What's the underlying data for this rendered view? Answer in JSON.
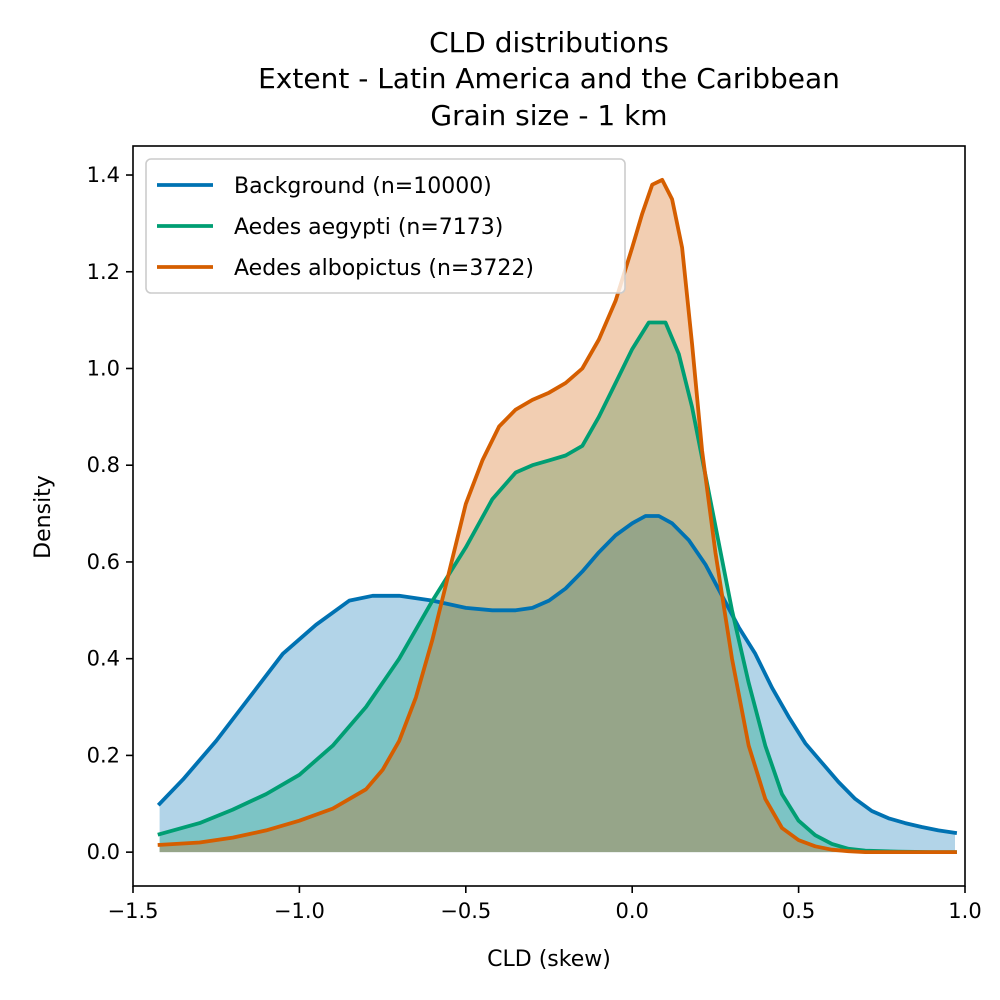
{
  "chart_data": {
    "type": "area",
    "title": [
      "CLD distributions",
      "Extent - Latin America and the Caribbean",
      "Grain size - 1 km"
    ],
    "xlabel": "CLD (skew)",
    "ylabel": "Density",
    "xlim": [
      -1.5,
      1.0
    ],
    "ylim": [
      -0.07,
      1.46
    ],
    "xticks": [
      -1.5,
      -1.0,
      -0.5,
      0.0,
      0.5,
      1.0
    ],
    "xtick_labels": [
      "−1.5",
      "−1.0",
      "−0.5",
      "0.0",
      "0.5",
      "1.0"
    ],
    "yticks": [
      0.0,
      0.2,
      0.4,
      0.6,
      0.8,
      1.0,
      1.2,
      1.4
    ],
    "ytick_labels": [
      "0.0",
      "0.2",
      "0.4",
      "0.6",
      "0.8",
      "1.0",
      "1.2",
      "1.4"
    ],
    "grid": false,
    "legend_position": "top-left",
    "series": [
      {
        "name": "Background (n=10000)",
        "color": "#0072B2",
        "fill": "#B3D4E6",
        "x": [
          -1.42,
          -1.35,
          -1.25,
          -1.15,
          -1.05,
          -0.95,
          -0.85,
          -0.78,
          -0.7,
          -0.6,
          -0.5,
          -0.42,
          -0.35,
          -0.3,
          -0.25,
          -0.2,
          -0.15,
          -0.1,
          -0.05,
          0.0,
          0.04,
          0.08,
          0.12,
          0.17,
          0.22,
          0.27,
          0.32,
          0.37,
          0.42,
          0.47,
          0.52,
          0.57,
          0.62,
          0.67,
          0.72,
          0.77,
          0.82,
          0.87,
          0.92,
          0.97
        ],
        "y": [
          0.1,
          0.15,
          0.23,
          0.32,
          0.41,
          0.47,
          0.52,
          0.53,
          0.53,
          0.52,
          0.505,
          0.5,
          0.5,
          0.505,
          0.52,
          0.545,
          0.58,
          0.62,
          0.655,
          0.68,
          0.695,
          0.695,
          0.68,
          0.645,
          0.595,
          0.53,
          0.465,
          0.41,
          0.34,
          0.28,
          0.225,
          0.185,
          0.145,
          0.11,
          0.085,
          0.07,
          0.06,
          0.052,
          0.045,
          0.04
        ]
      },
      {
        "name": "Aedes aegypti (n=7173)",
        "color": "#009E73",
        "fill": "#7FCEB9",
        "x": [
          -1.42,
          -1.3,
          -1.2,
          -1.1,
          -1.0,
          -0.9,
          -0.8,
          -0.7,
          -0.6,
          -0.5,
          -0.42,
          -0.35,
          -0.3,
          -0.25,
          -0.2,
          -0.15,
          -0.1,
          -0.05,
          0.0,
          0.05,
          0.1,
          0.14,
          0.18,
          0.22,
          0.26,
          0.3,
          0.35,
          0.4,
          0.45,
          0.5,
          0.55,
          0.6,
          0.65,
          0.7,
          0.8,
          0.9,
          0.97
        ],
        "y": [
          0.037,
          0.06,
          0.088,
          0.12,
          0.16,
          0.22,
          0.3,
          0.4,
          0.52,
          0.63,
          0.73,
          0.785,
          0.8,
          0.81,
          0.82,
          0.84,
          0.9,
          0.97,
          1.04,
          1.095,
          1.095,
          1.03,
          0.92,
          0.78,
          0.64,
          0.5,
          0.35,
          0.22,
          0.12,
          0.065,
          0.035,
          0.017,
          0.007,
          0.003,
          0.001,
          0.0,
          0.0
        ]
      },
      {
        "name": "Aedes albopictus (n=3722)",
        "color": "#D55E00",
        "fill": "#F2CBAF",
        "x": [
          -1.42,
          -1.3,
          -1.2,
          -1.1,
          -1.0,
          -0.9,
          -0.8,
          -0.75,
          -0.7,
          -0.65,
          -0.6,
          -0.55,
          -0.5,
          -0.45,
          -0.4,
          -0.35,
          -0.3,
          -0.25,
          -0.2,
          -0.15,
          -0.1,
          -0.05,
          0.0,
          0.03,
          0.06,
          0.09,
          0.12,
          0.15,
          0.18,
          0.21,
          0.25,
          0.3,
          0.35,
          0.4,
          0.45,
          0.5,
          0.55,
          0.6,
          0.65,
          0.7,
          0.8,
          0.97
        ],
        "y": [
          0.015,
          0.02,
          0.03,
          0.045,
          0.065,
          0.09,
          0.13,
          0.17,
          0.23,
          0.32,
          0.44,
          0.58,
          0.72,
          0.81,
          0.88,
          0.915,
          0.935,
          0.95,
          0.97,
          1.0,
          1.06,
          1.14,
          1.25,
          1.32,
          1.38,
          1.39,
          1.35,
          1.25,
          1.05,
          0.83,
          0.62,
          0.4,
          0.22,
          0.11,
          0.05,
          0.025,
          0.012,
          0.005,
          0.002,
          0.0,
          0.0,
          0.0
        ]
      }
    ]
  }
}
